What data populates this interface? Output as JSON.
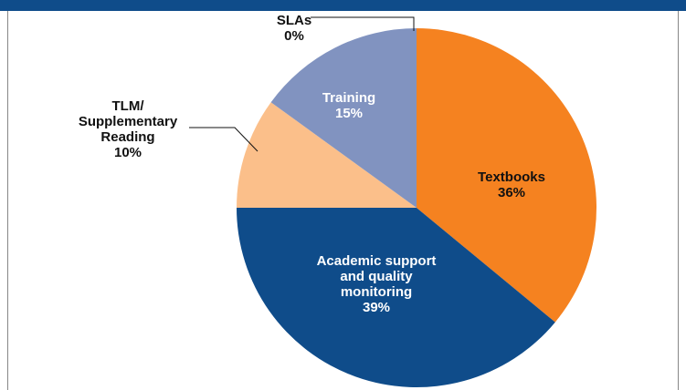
{
  "chart_data": {
    "type": "pie",
    "categories": [
      "Textbooks",
      "Academic support\nand quality\nmonitoring",
      "TLM/\nSupplementary\nReading",
      "Training",
      "SLAs"
    ],
    "values": [
      36,
      39,
      10,
      15,
      0
    ],
    "value_labels": [
      "36%",
      "39%",
      "10%",
      "15%",
      "0%"
    ],
    "colors": [
      "#f58220",
      "#0f4c8a",
      "#fbbf8a",
      "#8193c0",
      "#f7d8c2"
    ]
  }
}
